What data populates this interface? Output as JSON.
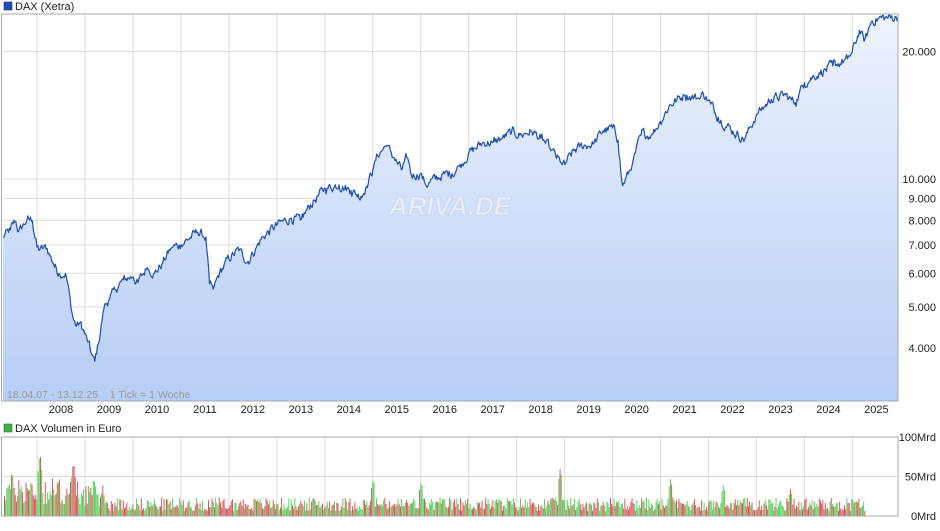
{
  "colors": {
    "price_line": "#1f4fae",
    "area_top": "#eef3fd",
    "area_bottom": "#b6cdf5",
    "grid": "#dcdcdc",
    "frame": "#a9a9a9",
    "legend_price": "#1f4fae",
    "legend_volume": "#40b040",
    "vol_up": "#4fc94f",
    "vol_down": "#d24a4a",
    "text": "#222222",
    "info_text": "#9a9a9a"
  },
  "watermark": "ARIVA.DE",
  "chart_data": [
    {
      "type": "line",
      "legend": "DAX (Xetra)",
      "scale": "log",
      "ylim": [
        3000,
        24500
      ],
      "x_range": [
        "2007-04-18",
        "2025-12-13"
      ],
      "ytick_labels": [
        {
          "value": 4000,
          "label": "4.000"
        },
        {
          "value": 5000,
          "label": "5.000"
        },
        {
          "value": 6000,
          "label": "6.000"
        },
        {
          "value": 7000,
          "label": "7.000"
        },
        {
          "value": 8000,
          "label": "8.000"
        },
        {
          "value": 9000,
          "label": "9.000"
        },
        {
          "value": 10000,
          "label": "10.000"
        },
        {
          "value": 20000,
          "label": "20.000"
        }
      ],
      "year_labels": [
        "2008",
        "2009",
        "2010",
        "2011",
        "2012",
        "2013",
        "2014",
        "2015",
        "2016",
        "2017",
        "2018",
        "2019",
        "2020",
        "2021",
        "2022",
        "2023",
        "2024",
        "2025"
      ],
      "info_text": "18.04.07 - 13.12.25    1 Tick = 1 Woche",
      "series": {
        "x": [
          2007.29,
          2007.45,
          2007.55,
          2007.62,
          2007.78,
          2007.9,
          2008.0,
          2008.05,
          2008.2,
          2008.35,
          2008.45,
          2008.6,
          2008.75,
          2008.82,
          2008.9,
          2009.0,
          2009.1,
          2009.2,
          2009.28,
          2009.4,
          2009.5,
          2009.65,
          2009.8,
          2010.0,
          2010.1,
          2010.3,
          2010.45,
          2010.6,
          2010.8,
          2011.0,
          2011.2,
          2011.35,
          2011.52,
          2011.6,
          2011.68,
          2011.8,
          2012.0,
          2012.2,
          2012.4,
          2012.5,
          2012.7,
          2013.0,
          2013.3,
          2013.5,
          2013.7,
          2014.0,
          2014.3,
          2014.55,
          2014.75,
          2014.85,
          2015.0,
          2015.1,
          2015.28,
          2015.45,
          2015.6,
          2015.72,
          2015.8,
          2016.0,
          2016.1,
          2016.3,
          2016.5,
          2016.65,
          2016.8,
          2017.0,
          2017.3,
          2017.5,
          2017.7,
          2017.9,
          2018.1,
          2018.3,
          2018.5,
          2018.7,
          2018.9,
          2019.0,
          2019.2,
          2019.4,
          2019.6,
          2019.8,
          2020.0,
          2020.12,
          2020.2,
          2020.4,
          2020.6,
          2020.8,
          2021.0,
          2021.2,
          2021.5,
          2021.8,
          2021.9,
          2022.05,
          2022.2,
          2022.5,
          2022.75,
          2023.0,
          2023.3,
          2023.6,
          2023.8,
          2024.0,
          2024.3,
          2024.6,
          2024.9,
          2025.0,
          2025.15,
          2025.25,
          2025.4,
          2025.6,
          2025.8,
          2025.95
        ],
        "y": [
          7300,
          7600,
          8000,
          7500,
          8000,
          8000,
          6900,
          6800,
          6900,
          6300,
          6000,
          6000,
          4700,
          4500,
          4600,
          4300,
          4000,
          3700,
          4100,
          5000,
          5200,
          5500,
          5800,
          5900,
          5700,
          6200,
          6000,
          6300,
          6900,
          7000,
          7300,
          7500,
          7300,
          5600,
          5500,
          6000,
          6500,
          6800,
          6400,
          6700,
          7300,
          7800,
          8100,
          8000,
          8700,
          9500,
          9700,
          9400,
          9100,
          9500,
          10500,
          11400,
          12000,
          11200,
          10500,
          11300,
          10200,
          10300,
          9700,
          10000,
          10300,
          10300,
          10700,
          11500,
          12200,
          12200,
          12500,
          12900,
          12700,
          13000,
          12500,
          11800,
          11000,
          10800,
          11700,
          12000,
          12100,
          13000,
          13200,
          12300,
          9600,
          10700,
          12800,
          12700,
          13700,
          15000,
          15800,
          15500,
          15900,
          15000,
          14000,
          13000,
          12400,
          14200,
          15400,
          15800,
          15100,
          16900,
          17800,
          18500,
          19200,
          19900,
          22500,
          21000,
          23600,
          24000,
          24000,
          24100
        ]
      }
    },
    {
      "type": "bar",
      "legend": "DAX Volumen in Euro",
      "ylim": [
        0,
        100
      ],
      "ytick_labels": [
        {
          "value": 0,
          "label": "0Mrd"
        },
        {
          "value": 50,
          "label": "50Mrd"
        },
        {
          "value": 100,
          "label": "100Mrd"
        }
      ],
      "x_range": [
        "2007-04-18",
        "2025-12-13"
      ],
      "spikes": [
        {
          "x": 2008.05,
          "value": 82
        },
        {
          "x": 2008.75,
          "value": 70
        },
        {
          "x": 2015.0,
          "value": 48
        },
        {
          "x": 2016.0,
          "value": 45
        },
        {
          "x": 2018.9,
          "value": 62
        },
        {
          "x": 2021.2,
          "value": 48
        },
        {
          "x": 2022.3,
          "value": 40
        },
        {
          "x": 2023.7,
          "value": 35
        }
      ],
      "baseline_level": 18,
      "crisis_level": 42,
      "end_year": 2025.25
    }
  ]
}
